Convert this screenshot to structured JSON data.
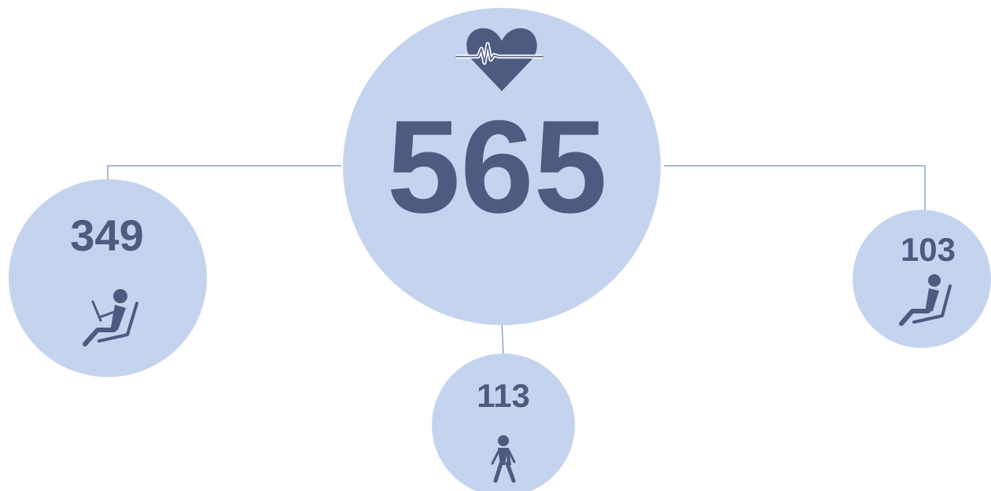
{
  "total": {
    "value": 565
  },
  "nodes": [
    {
      "value": 349
    },
    {
      "value": 113
    },
    {
      "value": 103
    }
  ]
}
